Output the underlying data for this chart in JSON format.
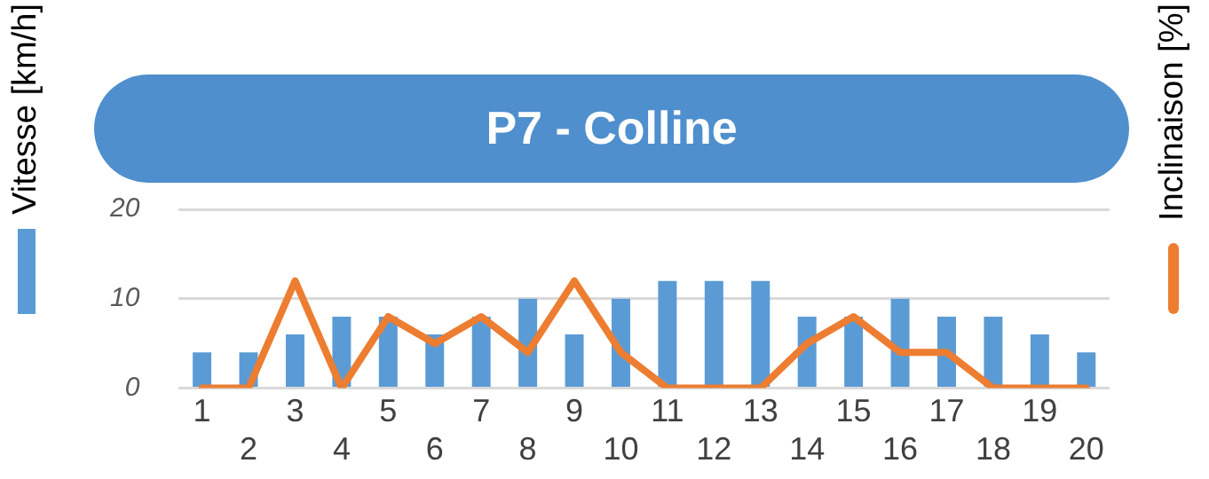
{
  "chart_data": {
    "type": "bar",
    "title": "P7 - Colline",
    "ylabel": "Vitesse [km/h]",
    "y2label": "Inclinaison [%]",
    "categories": [
      "1",
      "2",
      "3",
      "4",
      "5",
      "6",
      "7",
      "8",
      "9",
      "10",
      "11",
      "12",
      "13",
      "14",
      "15",
      "16",
      "17",
      "18",
      "19",
      "20"
    ],
    "series": [
      {
        "color": "#5b9bd5",
        "values": [
          4,
          4,
          6,
          8,
          8,
          6,
          8,
          10,
          6,
          10,
          12,
          12,
          12,
          8,
          8,
          10,
          8,
          8,
          6,
          4
        ]
      },
      {
        "type": "line",
        "color": "#ed7d31",
        "values": [
          0,
          0,
          12,
          0,
          8,
          5,
          8,
          4,
          12,
          4,
          0,
          0,
          0,
          5,
          8,
          4,
          4,
          0,
          0,
          0
        ]
      }
    ],
    "ylim": [
      0,
      20
    ],
    "yticks": [
      0,
      10,
      20
    ],
    "grid": "y",
    "legend": false,
    "marker": "none",
    "line_style": "solid"
  }
}
